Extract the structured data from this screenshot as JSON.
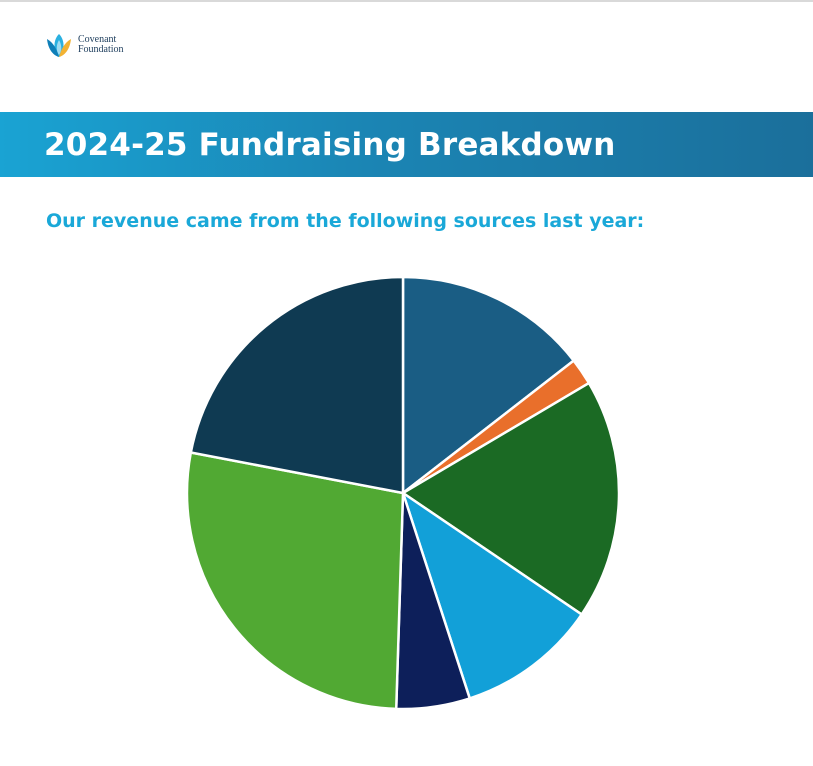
{
  "brand": {
    "logo_line1": "Covenant",
    "logo_line2": "Foundation",
    "logo_colors": [
      "#0f7fb8",
      "#2ab0e0",
      "#f2b233"
    ]
  },
  "banner": {
    "title": "2024-25 Fundraising Breakdown",
    "gradient": [
      "#1aa3d3",
      "#1b6f9b"
    ]
  },
  "subtitle": "Our revenue came from the following sources last year:",
  "chart_data": {
    "type": "pie",
    "title": "",
    "legend": "none",
    "data_labels": "none",
    "start_angle_deg": 0,
    "direction": "clockwise",
    "slices": [
      {
        "value": 14.5,
        "color": "#1a5d84"
      },
      {
        "value": 2.0,
        "color": "#e96f2b"
      },
      {
        "value": 18.0,
        "color": "#1b6a24"
      },
      {
        "value": 10.5,
        "color": "#12a0d8"
      },
      {
        "value": 5.5,
        "color": "#0d1f5a"
      },
      {
        "value": 27.5,
        "color": "#51a933"
      },
      {
        "value": 22.0,
        "color": "#0f3a52"
      }
    ]
  }
}
